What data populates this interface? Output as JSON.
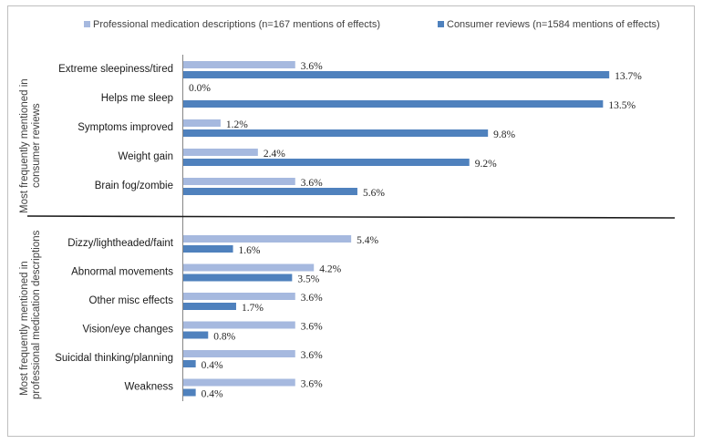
{
  "chart_data": {
    "type": "bar",
    "orientation": "horizontal",
    "title": "",
    "xlabel": "",
    "ylabel": "",
    "xlim": [
      0,
      16
    ],
    "grid": false,
    "legend_position": "top",
    "value_format": "percent_1dp",
    "series": [
      {
        "name": "Professional medication descriptions (n=167 mentions of effects)",
        "color": "#a6b9df"
      },
      {
        "name": "Consumer reviews (n=1584 mentions of effects)",
        "color": "#4f81bd"
      }
    ],
    "groups": [
      {
        "label_line1": "Most frequently mentioned in",
        "label_line2": "consumer reviews",
        "categories": [
          {
            "label": "Extreme sleepiness/tired",
            "professional": 3.6,
            "consumer": 13.7
          },
          {
            "label": "Helps me sleep",
            "professional": 0.0,
            "consumer": 13.5
          },
          {
            "label": "Symptoms improved",
            "professional": 1.2,
            "consumer": 9.8
          },
          {
            "label": "Weight gain",
            "professional": 2.4,
            "consumer": 9.2
          },
          {
            "label": "Brain fog/zombie",
            "professional": 3.6,
            "consumer": 5.6
          }
        ]
      },
      {
        "label_line1": "Most frequently mentioned in",
        "label_line2": "professional medication descriptions",
        "categories": [
          {
            "label": "Dizzy/lightheaded/faint",
            "professional": 5.4,
            "consumer": 1.6
          },
          {
            "label": "Abnormal movements",
            "professional": 4.2,
            "consumer": 3.5
          },
          {
            "label": "Other misc effects",
            "professional": 3.6,
            "consumer": 1.7
          },
          {
            "label": "Vision/eye changes",
            "professional": 3.6,
            "consumer": 0.8
          },
          {
            "label": "Suicidal thinking/planning",
            "professional": 3.6,
            "consumer": 0.4
          },
          {
            "label": "Weakness",
            "professional": 3.6,
            "consumer": 0.4
          }
        ]
      }
    ]
  }
}
